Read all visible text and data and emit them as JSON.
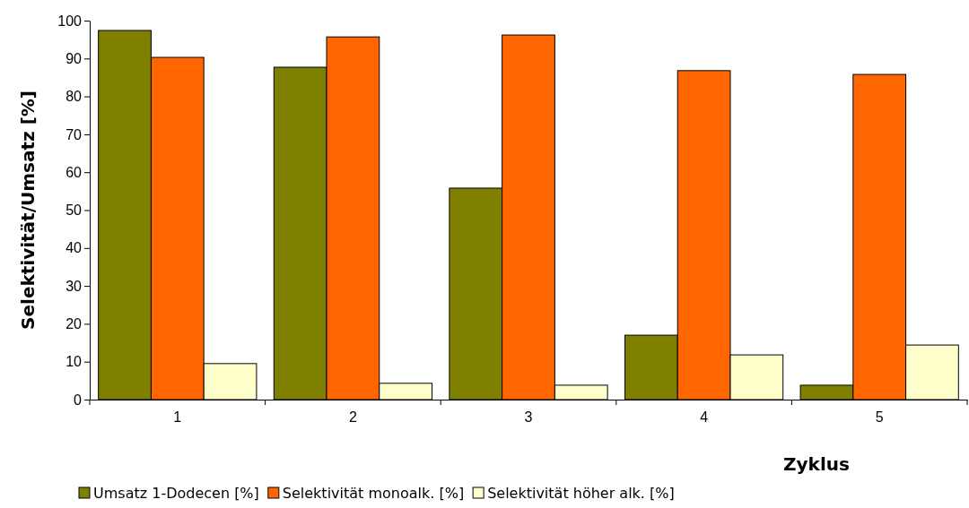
{
  "chart_data": {
    "type": "bar",
    "xlabel": "Zyklus",
    "ylabel": "Selektivität/Umsatz [%]",
    "categories": [
      "1",
      "2",
      "3",
      "4",
      "5"
    ],
    "series": [
      {
        "name": "Umsatz 1-Dodecen [%]",
        "color": "#808000",
        "values": [
          97.4,
          87.7,
          55.8,
          17.0,
          3.8
        ]
      },
      {
        "name": "Selektivität monoalk. [%]",
        "color": "#ff6600",
        "values": [
          90.3,
          95.7,
          96.2,
          86.8,
          85.8
        ]
      },
      {
        "name": "Selektivität höher alk. [%]",
        "color": "#ffffcc",
        "values": [
          9.5,
          4.3,
          3.8,
          11.8,
          14.4
        ]
      }
    ],
    "ylim": [
      0,
      100
    ],
    "yticks": [
      0,
      10,
      20,
      30,
      40,
      50,
      60,
      70,
      80,
      90,
      100
    ],
    "legend": "bottom left",
    "grid": false
  }
}
